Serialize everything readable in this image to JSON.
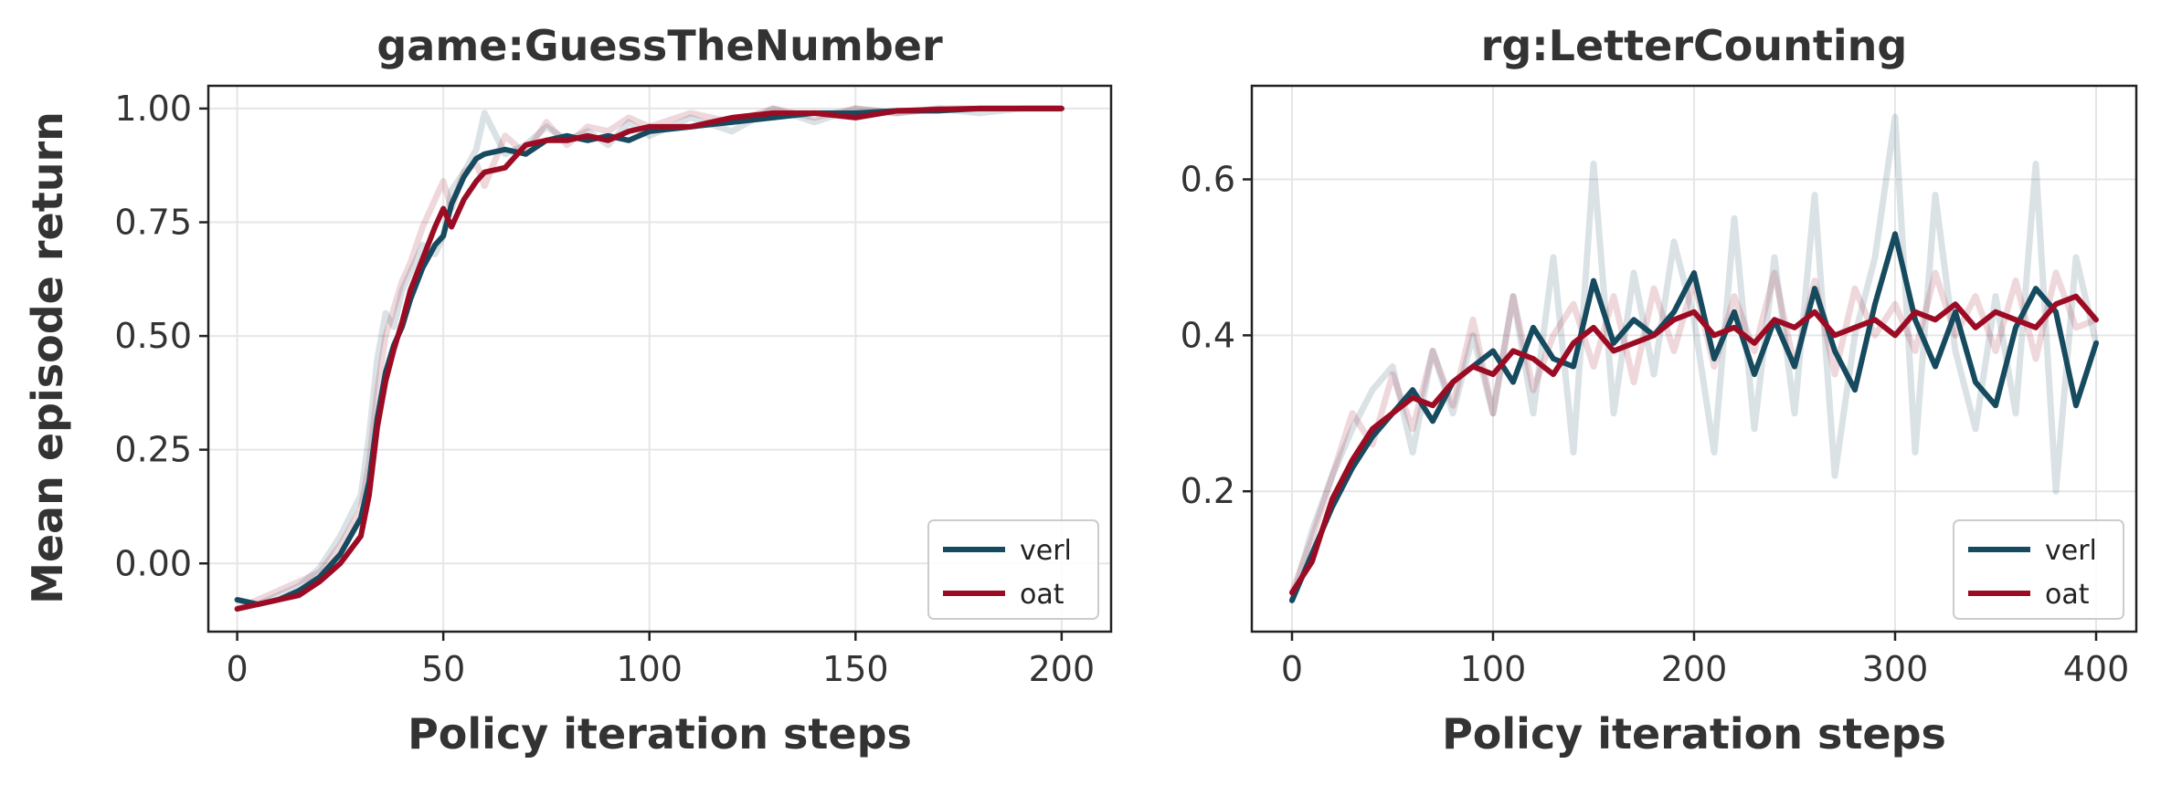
{
  "figure": {
    "ylabel": "Mean episode return"
  },
  "chart_data": [
    {
      "type": "line",
      "title": "game:GuessTheNumber",
      "xlabel": "Policy iteration steps",
      "ylabel": "Mean episode return",
      "xlim": [
        -7,
        212
      ],
      "ylim": [
        -0.15,
        1.05
      ],
      "xticks": [
        0,
        50,
        100,
        150,
        200
      ],
      "xtick_labels": [
        "0",
        "50",
        "100",
        "150",
        "200"
      ],
      "yticks": [
        0.0,
        0.25,
        0.5,
        0.75,
        1.0
      ],
      "ytick_labels": [
        "0.00",
        "0.25",
        "0.50",
        "0.75",
        "1.00"
      ],
      "grid": true,
      "legend_position": "bottom-right",
      "series": [
        {
          "name": "verl",
          "color": "#164a5e",
          "x": [
            0,
            5,
            10,
            15,
            20,
            25,
            30,
            32,
            34,
            36,
            38,
            40,
            42,
            45,
            48,
            50,
            52,
            55,
            58,
            60,
            65,
            70,
            75,
            80,
            85,
            90,
            95,
            100,
            110,
            120,
            130,
            140,
            150,
            160,
            170,
            180,
            190,
            200
          ],
          "y": [
            -0.08,
            -0.09,
            -0.08,
            -0.06,
            -0.03,
            0.02,
            0.1,
            0.18,
            0.32,
            0.42,
            0.48,
            0.52,
            0.58,
            0.65,
            0.7,
            0.72,
            0.79,
            0.85,
            0.89,
            0.9,
            0.91,
            0.9,
            0.93,
            0.94,
            0.93,
            0.94,
            0.93,
            0.95,
            0.96,
            0.97,
            0.98,
            0.99,
            0.99,
            0.995,
            0.995,
            1.0,
            1.0,
            1.0
          ],
          "raw": [
            -0.08,
            -0.09,
            -0.07,
            -0.05,
            -0.01,
            0.06,
            0.15,
            0.28,
            0.45,
            0.55,
            0.52,
            0.6,
            0.64,
            0.7,
            0.68,
            0.72,
            0.82,
            0.86,
            0.91,
            0.99,
            0.9,
            0.92,
            0.96,
            0.93,
            0.95,
            0.92,
            0.97,
            0.94,
            0.98,
            0.95,
            1.0,
            0.97,
            1.0,
            0.99,
            1.0,
            0.99,
            1.0,
            1.0
          ]
        },
        {
          "name": "oat",
          "color": "#9b0c24",
          "x": [
            0,
            5,
            10,
            15,
            20,
            25,
            30,
            32,
            34,
            36,
            38,
            40,
            42,
            45,
            48,
            50,
            52,
            55,
            58,
            60,
            65,
            70,
            75,
            80,
            85,
            90,
            95,
            100,
            110,
            120,
            130,
            140,
            150,
            160,
            170,
            180,
            190,
            200
          ],
          "y": [
            -0.1,
            -0.09,
            -0.08,
            -0.07,
            -0.04,
            0.0,
            0.06,
            0.15,
            0.3,
            0.4,
            0.47,
            0.53,
            0.6,
            0.67,
            0.74,
            0.78,
            0.74,
            0.8,
            0.84,
            0.86,
            0.87,
            0.92,
            0.93,
            0.93,
            0.94,
            0.93,
            0.95,
            0.96,
            0.96,
            0.98,
            0.99,
            0.99,
            0.98,
            0.995,
            0.998,
            1.0,
            1.0,
            1.0
          ],
          "raw": [
            -0.1,
            -0.08,
            -0.06,
            -0.04,
            -0.02,
            0.04,
            0.12,
            0.22,
            0.38,
            0.5,
            0.56,
            0.62,
            0.66,
            0.74,
            0.8,
            0.84,
            0.78,
            0.86,
            0.88,
            0.83,
            0.94,
            0.9,
            0.97,
            0.92,
            0.96,
            0.95,
            0.98,
            0.96,
            0.99,
            0.97,
            1.0,
            0.98,
            1.0,
            0.99,
            1.0,
            1.0,
            1.0,
            1.0
          ]
        }
      ]
    },
    {
      "type": "line",
      "title": "rg:LetterCounting",
      "xlabel": "Policy iteration steps",
      "ylabel": "",
      "xlim": [
        -20,
        420
      ],
      "ylim": [
        0.02,
        0.72
      ],
      "xticks": [
        0,
        100,
        200,
        300,
        400
      ],
      "xtick_labels": [
        "0",
        "100",
        "200",
        "300",
        "400"
      ],
      "yticks": [
        0.2,
        0.4,
        0.6
      ],
      "ytick_labels": [
        "0.2",
        "0.4",
        "0.6"
      ],
      "grid": true,
      "legend_position": "bottom-right",
      "series": [
        {
          "name": "verl",
          "color": "#164a5e",
          "x": [
            0,
            10,
            20,
            30,
            40,
            50,
            60,
            70,
            80,
            90,
            100,
            110,
            120,
            130,
            140,
            150,
            160,
            170,
            180,
            190,
            200,
            210,
            220,
            230,
            240,
            250,
            260,
            270,
            280,
            290,
            300,
            310,
            320,
            330,
            340,
            350,
            360,
            370,
            380,
            390,
            400
          ],
          "y": [
            0.06,
            0.12,
            0.18,
            0.23,
            0.27,
            0.3,
            0.33,
            0.29,
            0.34,
            0.36,
            0.38,
            0.34,
            0.41,
            0.37,
            0.36,
            0.47,
            0.39,
            0.42,
            0.4,
            0.43,
            0.48,
            0.37,
            0.43,
            0.35,
            0.42,
            0.36,
            0.46,
            0.38,
            0.33,
            0.44,
            0.53,
            0.42,
            0.36,
            0.43,
            0.34,
            0.31,
            0.41,
            0.46,
            0.43,
            0.31,
            0.39
          ],
          "raw": [
            0.06,
            0.15,
            0.22,
            0.28,
            0.33,
            0.36,
            0.25,
            0.38,
            0.3,
            0.4,
            0.3,
            0.45,
            0.3,
            0.5,
            0.25,
            0.62,
            0.3,
            0.48,
            0.35,
            0.52,
            0.42,
            0.25,
            0.55,
            0.28,
            0.5,
            0.3,
            0.58,
            0.22,
            0.4,
            0.5,
            0.68,
            0.25,
            0.58,
            0.38,
            0.28,
            0.45,
            0.3,
            0.62,
            0.2,
            0.5,
            0.39
          ]
        },
        {
          "name": "oat",
          "color": "#9b0c24",
          "x": [
            0,
            10,
            20,
            30,
            40,
            50,
            60,
            70,
            80,
            90,
            100,
            110,
            120,
            130,
            140,
            150,
            160,
            170,
            180,
            190,
            200,
            210,
            220,
            230,
            240,
            250,
            260,
            270,
            280,
            290,
            300,
            310,
            320,
            330,
            340,
            350,
            360,
            370,
            380,
            390,
            400
          ],
          "y": [
            0.07,
            0.11,
            0.19,
            0.24,
            0.28,
            0.3,
            0.32,
            0.31,
            0.34,
            0.36,
            0.35,
            0.38,
            0.37,
            0.35,
            0.39,
            0.41,
            0.38,
            0.39,
            0.4,
            0.42,
            0.43,
            0.4,
            0.41,
            0.39,
            0.42,
            0.41,
            0.43,
            0.4,
            0.41,
            0.42,
            0.4,
            0.43,
            0.42,
            0.44,
            0.41,
            0.43,
            0.42,
            0.41,
            0.44,
            0.45,
            0.42
          ],
          "raw": [
            0.07,
            0.14,
            0.22,
            0.3,
            0.26,
            0.35,
            0.28,
            0.38,
            0.31,
            0.42,
            0.3,
            0.45,
            0.33,
            0.4,
            0.44,
            0.36,
            0.45,
            0.34,
            0.46,
            0.38,
            0.47,
            0.36,
            0.45,
            0.38,
            0.48,
            0.36,
            0.47,
            0.35,
            0.46,
            0.4,
            0.44,
            0.38,
            0.48,
            0.4,
            0.45,
            0.38,
            0.47,
            0.37,
            0.48,
            0.41,
            0.42
          ]
        }
      ]
    }
  ]
}
